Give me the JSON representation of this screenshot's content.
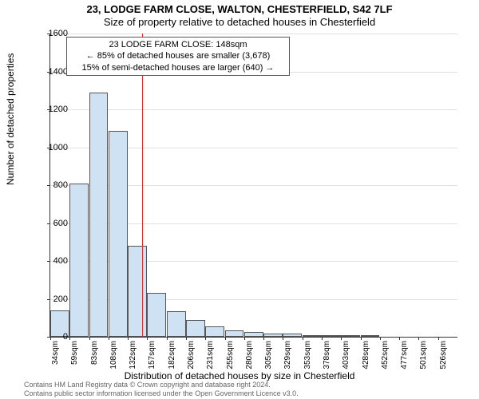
{
  "title_main": "23, LODGE FARM CLOSE, WALTON, CHESTERFIELD, S42 7LF",
  "title_sub": "Size of property relative to detached houses in Chesterfield",
  "y_axis_label": "Number of detached properties",
  "x_axis_label": "Distribution of detached houses by size in Chesterfield",
  "footer_line1": "Contains HM Land Registry data © Crown copyright and database right 2024.",
  "footer_line2": "Contains public sector information licensed under the Open Government Licence v3.0.",
  "info_box": {
    "line1": "23 LODGE FARM CLOSE: 148sqm",
    "line2": "← 85% of detached houses are smaller (3,678)",
    "line3": "15% of semi-detached houses are larger (640) →"
  },
  "chart": {
    "type": "histogram",
    "background_color": "#ffffff",
    "grid_color": "#e0e0e0",
    "bar_fill": "#cfe2f3",
    "bar_border": "#555555",
    "marker_color": "#e03030",
    "y_min": 0,
    "y_max": 1600,
    "y_tick_step": 200,
    "x_range_sqm": [
      34,
      540
    ],
    "x_ticks": [
      "34sqm",
      "59sqm",
      "83sqm",
      "108sqm",
      "132sqm",
      "157sqm",
      "182sqm",
      "206sqm",
      "231sqm",
      "255sqm",
      "280sqm",
      "305sqm",
      "329sqm",
      "353sqm",
      "378sqm",
      "403sqm",
      "428sqm",
      "452sqm",
      "477sqm",
      "501sqm",
      "526sqm"
    ],
    "bars": [
      140,
      810,
      1290,
      1085,
      480,
      230,
      135,
      90,
      55,
      35,
      25,
      15,
      15,
      10,
      10,
      8,
      5,
      0,
      0,
      0,
      0
    ],
    "marker_sqm": 148
  }
}
